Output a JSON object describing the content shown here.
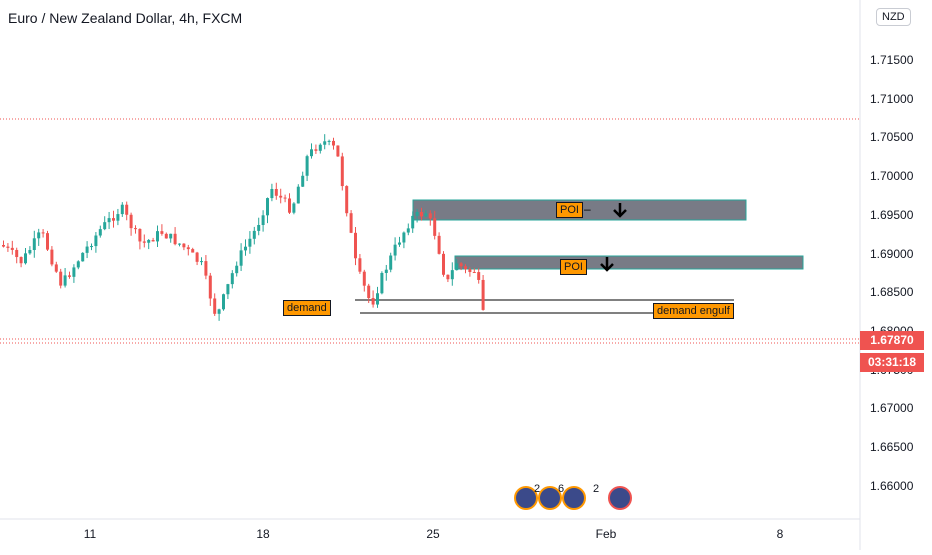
{
  "header": {
    "title": "Euro / New Zealand Dollar, 4h, FXCM"
  },
  "price_scale": {
    "currency": "NZD",
    "ticks": [
      "1.71500",
      "1.71000",
      "1.70500",
      "1.70000",
      "1.69500",
      "1.69000",
      "1.68500",
      "1.68000",
      "1.67500",
      "1.67000",
      "1.66500",
      "1.66000"
    ],
    "last_price": "1.67870",
    "countdown": "03:31:18"
  },
  "time_scale": {
    "ticks": [
      "11",
      "18",
      "25",
      "Feb",
      "8"
    ]
  },
  "annotations": {
    "poi_top": {
      "label": "POI",
      "dash": "–"
    },
    "poi_bottom": {
      "label": "POI"
    },
    "demand": {
      "label": "demand"
    },
    "demand_engulf": {
      "label": "demand engulf"
    }
  },
  "events": {
    "counts": [
      "2",
      "6",
      "2"
    ]
  },
  "colors": {
    "up": "#26a69a",
    "down": "#ef5350",
    "zone": "#787b86",
    "label": "#ff9800",
    "grid": "#e0e3eb"
  }
}
